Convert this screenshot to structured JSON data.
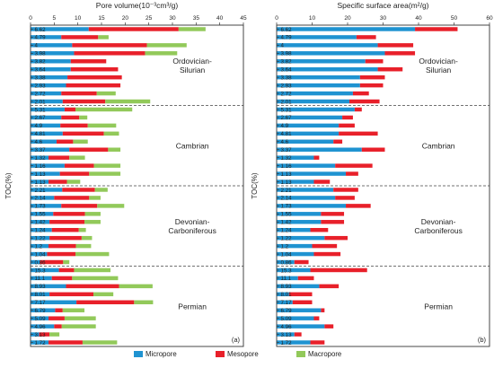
{
  "colors": {
    "micropore": "#1f93d1",
    "mesopore": "#e8202a",
    "macropore": "#92c95a"
  },
  "toc_axis_label": "TOC(%)",
  "toc_labels": [
    "6.62",
    "4.79",
    "4",
    "3.98",
    "3.82",
    "3.64",
    "3.38",
    "2.93",
    "2.72",
    "2.01",
    "5.31",
    "2.67",
    "4.9",
    "4.81",
    "4.6",
    "3.37",
    "1.32",
    "1.16",
    "1.13",
    "1.13",
    "2.21",
    "2.14",
    "1.73",
    "1.55",
    "1.42",
    "1.24",
    "1.22",
    "1.2",
    "1.04",
    "0.86",
    "15.3",
    "11.1",
    "8.93",
    "8.01",
    "7.17",
    "6.79",
    "5.09",
    "4.96",
    "3.13",
    "1.72"
  ],
  "groups": [
    {
      "name_line1": "Ordovician-",
      "name_line2": "Silurian",
      "start": 0,
      "end": 9
    },
    {
      "name_line1": "Cambrian",
      "name_line2": "",
      "start": 10,
      "end": 19
    },
    {
      "name_line1": "Devonian-",
      "name_line2": "Carboniferous",
      "start": 20,
      "end": 29
    },
    {
      "name_line1": "Permian",
      "name_line2": "",
      "start": 30,
      "end": 39
    }
  ],
  "legend": {
    "items": [
      "Micropore",
      "Mesopore",
      "Macropore"
    ]
  },
  "chart_data": [
    {
      "type": "bar",
      "orientation": "horizontal",
      "stacked": true,
      "title": "Pore volume(10⁻³cm³/g)",
      "panel_label": "(a)",
      "ylabel": "TOC(%)",
      "xlim": [
        0,
        45
      ],
      "xticks": [
        0,
        5,
        10,
        15,
        20,
        25,
        30,
        35,
        40,
        45
      ],
      "categories": [
        "6.62",
        "4.79",
        "4",
        "3.98",
        "3.82",
        "3.64",
        "3.38",
        "2.93",
        "2.72",
        "2.01",
        "5.31",
        "2.67",
        "4.9",
        "4.81",
        "4.6",
        "3.37",
        "1.32",
        "1.16",
        "1.13",
        "1.13",
        "2.21",
        "2.14",
        "1.73",
        "1.55",
        "1.42",
        "1.24",
        "1.22",
        "1.2",
        "1.04",
        "0.86",
        "15.3",
        "11.1",
        "8.93",
        "8.01",
        "7.17",
        "6.79",
        "5.09",
        "4.96",
        "3.13",
        "1.72"
      ],
      "series": [
        {
          "name": "Micropore",
          "values": [
            12.3,
            6.5,
            8.8,
            9.2,
            8.5,
            8.5,
            7.8,
            7.5,
            6.5,
            6.8,
            7.2,
            6.5,
            6.3,
            6.8,
            5.5,
            8.2,
            3.8,
            7.2,
            6.2,
            3.8,
            6.7,
            5.0,
            6.5,
            4.8,
            4.0,
            4.5,
            4.0,
            3.8,
            3.5,
            2.0,
            6.0,
            4.5,
            7.5,
            4.0,
            9.7,
            5.2,
            3.8,
            5.0,
            1.8,
            3.8
          ]
        },
        {
          "name": "Mesopore",
          "values": [
            19.0,
            7.8,
            15.8,
            15.0,
            7.5,
            10.0,
            11.5,
            11.5,
            7.5,
            9.0,
            2.3,
            3.8,
            5.8,
            8.7,
            3.5,
            8.2,
            4.4,
            6.2,
            6.2,
            3.9,
            6.9,
            7.4,
            7.6,
            6.7,
            7.4,
            5.7,
            6.8,
            5.8,
            6.0,
            4.9,
            3.2,
            4.3,
            11.2,
            9.3,
            12.2,
            1.6,
            3.4,
            1.6,
            2.2,
            7.2
          ]
        },
        {
          "name": "Macropore",
          "values": [
            5.7,
            2.2,
            8.4,
            6.8,
            0.0,
            0.0,
            0.0,
            0.0,
            4.0,
            9.5,
            12.0,
            1.7,
            6.0,
            3.2,
            3.1,
            2.6,
            3.3,
            5.6,
            6.6,
            2.8,
            2.7,
            2.4,
            5.7,
            3.3,
            3.4,
            1.5,
            2.2,
            3.2,
            7.1,
            1.3,
            7.7,
            9.7,
            7.1,
            4.2,
            4.0,
            4.6,
            6.6,
            7.2,
            2.1,
            7.3
          ]
        }
      ],
      "legend": [
        "Micropore",
        "Mesopore",
        "Macropore"
      ]
    },
    {
      "type": "bar",
      "orientation": "horizontal",
      "stacked": true,
      "title": "Specific surface area(m²/g)",
      "panel_label": "(b)",
      "ylabel": "TOC(%)",
      "xlim": [
        0,
        60
      ],
      "xticks": [
        0,
        10,
        20,
        30,
        40,
        50,
        60
      ],
      "categories": [
        "6.62",
        "4.79",
        "4",
        "3.98",
        "3.82",
        "3.64",
        "3.38",
        "2.93",
        "2.72",
        "2.01",
        "5.31",
        "2.67",
        "4.9",
        "4.81",
        "4.6",
        "3.37",
        "1.32",
        "1.16",
        "1.13",
        "1.13",
        "2.21",
        "2.14",
        "1.73",
        "1.55",
        "1.42",
        "1.24",
        "1.22",
        "1.2",
        "1.04",
        "0.86",
        "15.3",
        "11.1",
        "8.93",
        "8.01",
        "7.17",
        "6.79",
        "5.09",
        "4.96",
        "3.13",
        "1.72"
      ],
      "series": [
        {
          "name": "Micropore",
          "values": [
            39.0,
            22.5,
            28.5,
            30.5,
            25.0,
            28.5,
            23.5,
            23.5,
            21.5,
            20.5,
            22.0,
            18.5,
            17.5,
            17.5,
            16.0,
            24.0,
            10.5,
            16.5,
            19.5,
            10.5,
            16.0,
            16.5,
            19.5,
            12.5,
            12.5,
            9.5,
            13.5,
            10.0,
            10.5,
            5.0,
            9.5,
            6.0,
            12.0,
            3.5,
            4.5,
            12.5,
            10.5,
            13.5,
            5.0,
            9.5
          ]
        },
        {
          "name": "Mesopore",
          "values": [
            12.0,
            5.5,
            10.0,
            8.5,
            5.0,
            7.0,
            7.0,
            6.5,
            4.5,
            8.5,
            2.0,
            3.0,
            4.5,
            11.0,
            2.5,
            6.5,
            1.5,
            10.5,
            3.5,
            4.5,
            7.0,
            5.5,
            7.0,
            6.5,
            6.5,
            5.0,
            6.5,
            7.0,
            7.5,
            4.0,
            16.0,
            4.5,
            5.5,
            6.5,
            5.5,
            1.0,
            1.5,
            2.5,
            2.0,
            4.0
          ]
        },
        {
          "name": "Macropore",
          "values": [
            0,
            0,
            0,
            0,
            0,
            0,
            0,
            0,
            0,
            0,
            0,
            0,
            0,
            0,
            0,
            0,
            0,
            0,
            0,
            0,
            0,
            0,
            0,
            0,
            0,
            0,
            0,
            0,
            0,
            0,
            0,
            0,
            0,
            0,
            0,
            0,
            0,
            0,
            0,
            0
          ]
        }
      ],
      "legend": [
        "Micropore",
        "Mesopore",
        "Macropore"
      ]
    }
  ]
}
